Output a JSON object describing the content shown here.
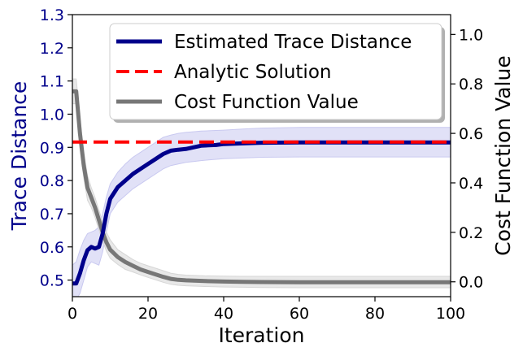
{
  "chart_data": {
    "type": "line",
    "xlabel": "Iteration",
    "ylabel_left": "Trace Distance",
    "ylabel_right": "Cost Function Value",
    "xlim": [
      0,
      100
    ],
    "ylim_left": [
      0.45,
      1.3
    ],
    "ylim_right": [
      -0.06,
      1.08
    ],
    "xticks": [
      0,
      20,
      40,
      60,
      80,
      100
    ],
    "yticks_left": [
      0.5,
      0.6,
      0.7,
      0.8,
      0.9,
      1.0,
      1.1,
      1.2,
      1.3
    ],
    "yticks_left_labels": [
      "0.5",
      "0.6",
      "0.7",
      "0.8",
      "0.9",
      "1.0",
      "1.1",
      "1.2",
      "1.3"
    ],
    "yticks_right": [
      0.0,
      0.2,
      0.4,
      0.6,
      0.8,
      1.0
    ],
    "yticks_right_labels": [
      "0.0",
      "0.2",
      "0.4",
      "0.6",
      "0.8",
      "1.0"
    ],
    "legend_position": "top-right",
    "grid": false,
    "left_axis_color": "#00008b",
    "series": [
      {
        "name": "Estimated Trace Distance",
        "axis": "left",
        "color": "#00008b",
        "style": "solid",
        "x": [
          0,
          1,
          2,
          3,
          4,
          5,
          6,
          7,
          8,
          9,
          10,
          12,
          14,
          16,
          18,
          20,
          22,
          24,
          26,
          28,
          30,
          32,
          34,
          36,
          38,
          40,
          45,
          50,
          60,
          70,
          80,
          90,
          100
        ],
        "values": [
          0.49,
          0.49,
          0.52,
          0.56,
          0.59,
          0.6,
          0.595,
          0.6,
          0.64,
          0.7,
          0.745,
          0.78,
          0.8,
          0.82,
          0.835,
          0.85,
          0.865,
          0.88,
          0.89,
          0.893,
          0.895,
          0.9,
          0.905,
          0.906,
          0.907,
          0.91,
          0.912,
          0.914,
          0.915,
          0.915,
          0.915,
          0.915,
          0.915
        ],
        "band_upper": [
          0.545,
          0.555,
          0.59,
          0.62,
          0.64,
          0.645,
          0.65,
          0.66,
          0.7,
          0.75,
          0.79,
          0.825,
          0.85,
          0.87,
          0.885,
          0.9,
          0.915,
          0.93,
          0.937,
          0.942,
          0.945,
          0.947,
          0.949,
          0.95,
          0.951,
          0.952,
          0.955,
          0.958,
          0.96,
          0.96,
          0.96,
          0.96,
          0.96
        ],
        "band_lower": [
          0.44,
          0.44,
          0.46,
          0.5,
          0.54,
          0.555,
          0.55,
          0.545,
          0.585,
          0.645,
          0.7,
          0.735,
          0.755,
          0.775,
          0.79,
          0.805,
          0.82,
          0.835,
          0.845,
          0.85,
          0.855,
          0.857,
          0.86,
          0.862,
          0.864,
          0.866,
          0.868,
          0.87,
          0.871,
          0.871,
          0.871,
          0.871,
          0.871
        ],
        "band_color": "#c9c9f0"
      },
      {
        "name": "Analytic Solution",
        "axis": "left",
        "color": "#ff0000",
        "style": "dashed",
        "x": [
          0,
          100
        ],
        "values": [
          0.916,
          0.916
        ]
      },
      {
        "name": "Cost Function Value",
        "axis": "right",
        "color": "#777777",
        "style": "solid",
        "x": [
          0,
          1,
          2,
          3,
          4,
          5,
          6,
          7,
          8,
          9,
          10,
          12,
          14,
          16,
          18,
          20,
          22,
          24,
          26,
          28,
          30,
          35,
          40,
          45,
          50,
          60,
          70,
          80,
          90,
          100
        ],
        "values": [
          0.77,
          0.77,
          0.6,
          0.47,
          0.38,
          0.34,
          0.3,
          0.25,
          0.2,
          0.16,
          0.13,
          0.1,
          0.08,
          0.065,
          0.05,
          0.04,
          0.03,
          0.02,
          0.012,
          0.008,
          0.006,
          0.003,
          0.001,
          0.0,
          -0.001,
          -0.002,
          -0.002,
          -0.002,
          -0.002,
          -0.002
        ],
        "band_upper": [
          0.82,
          0.82,
          0.66,
          0.52,
          0.43,
          0.38,
          0.34,
          0.29,
          0.24,
          0.2,
          0.17,
          0.13,
          0.11,
          0.09,
          0.075,
          0.065,
          0.055,
          0.045,
          0.035,
          0.03,
          0.027,
          0.024,
          0.023,
          0.022,
          0.022,
          0.022,
          0.022,
          0.022,
          0.022,
          0.022
        ],
        "band_lower": [
          0.72,
          0.72,
          0.54,
          0.42,
          0.33,
          0.3,
          0.26,
          0.21,
          0.165,
          0.125,
          0.095,
          0.07,
          0.05,
          0.04,
          0.028,
          0.018,
          0.008,
          -0.002,
          -0.01,
          -0.014,
          -0.016,
          -0.019,
          -0.021,
          -0.022,
          -0.023,
          -0.024,
          -0.024,
          -0.024,
          -0.024,
          -0.024
        ],
        "band_color": "#d6d6d6"
      }
    ]
  }
}
